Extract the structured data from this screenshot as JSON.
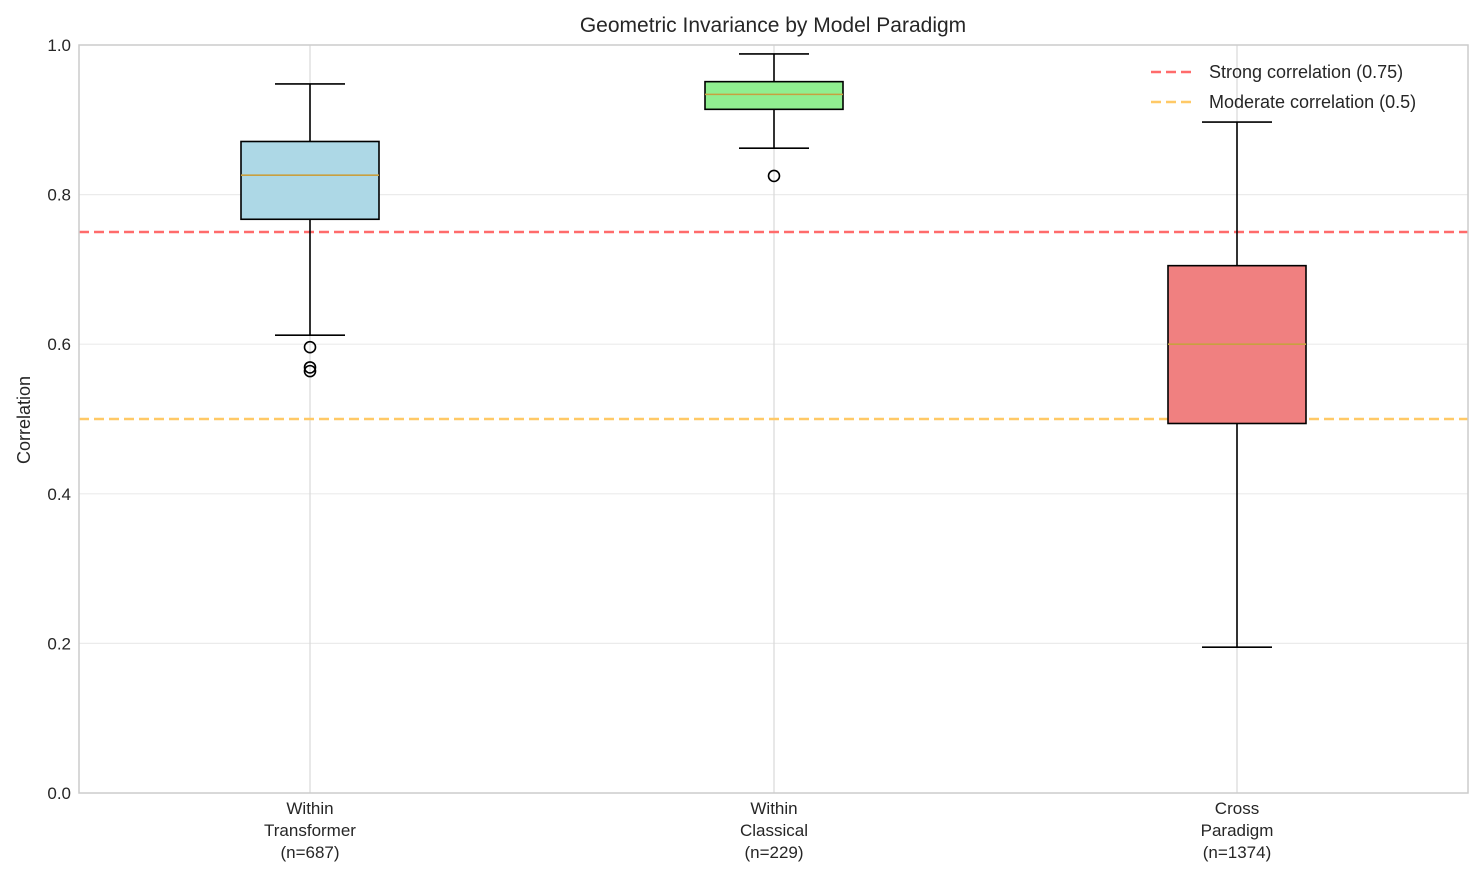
{
  "chart_data": {
    "type": "box",
    "title": "Geometric Invariance by Model Paradigm",
    "xlabel": "",
    "ylabel": "Correlation",
    "ylim": [
      0,
      1.0
    ],
    "yticks": [
      "0.0",
      "0.2",
      "0.4",
      "0.6",
      "0.8",
      "1.0"
    ],
    "grid": true,
    "legend_position": "top-right",
    "categories": [
      {
        "lines": [
          "Within",
          "Transformer",
          "(n=687)"
        ]
      },
      {
        "lines": [
          "Within",
          "Classical",
          "(n=229)"
        ]
      },
      {
        "lines": [
          "Cross",
          "Paradigm",
          "(n=1374)"
        ]
      }
    ],
    "boxes": [
      {
        "whisker_low": 0.612,
        "q1": 0.767,
        "median": 0.826,
        "q3": 0.871,
        "whisker_high": 0.948,
        "outliers": [
          0.596,
          0.569,
          0.564
        ],
        "color": "#add8e6"
      },
      {
        "whisker_low": 0.862,
        "q1": 0.914,
        "median": 0.934,
        "q3": 0.951,
        "whisker_high": 0.988,
        "outliers": [
          0.825
        ],
        "color": "#90ee90"
      },
      {
        "whisker_low": 0.195,
        "q1": 0.494,
        "median": 0.6,
        "q3": 0.705,
        "whisker_high": 0.897,
        "outliers": [],
        "color": "#f08080"
      }
    ],
    "reference_lines": [
      {
        "label": "Strong correlation (0.75)",
        "value": 0.75,
        "color": "#ff6b6b"
      },
      {
        "label": "Moderate correlation (0.5)",
        "value": 0.5,
        "color": "#ffc966"
      }
    ]
  }
}
